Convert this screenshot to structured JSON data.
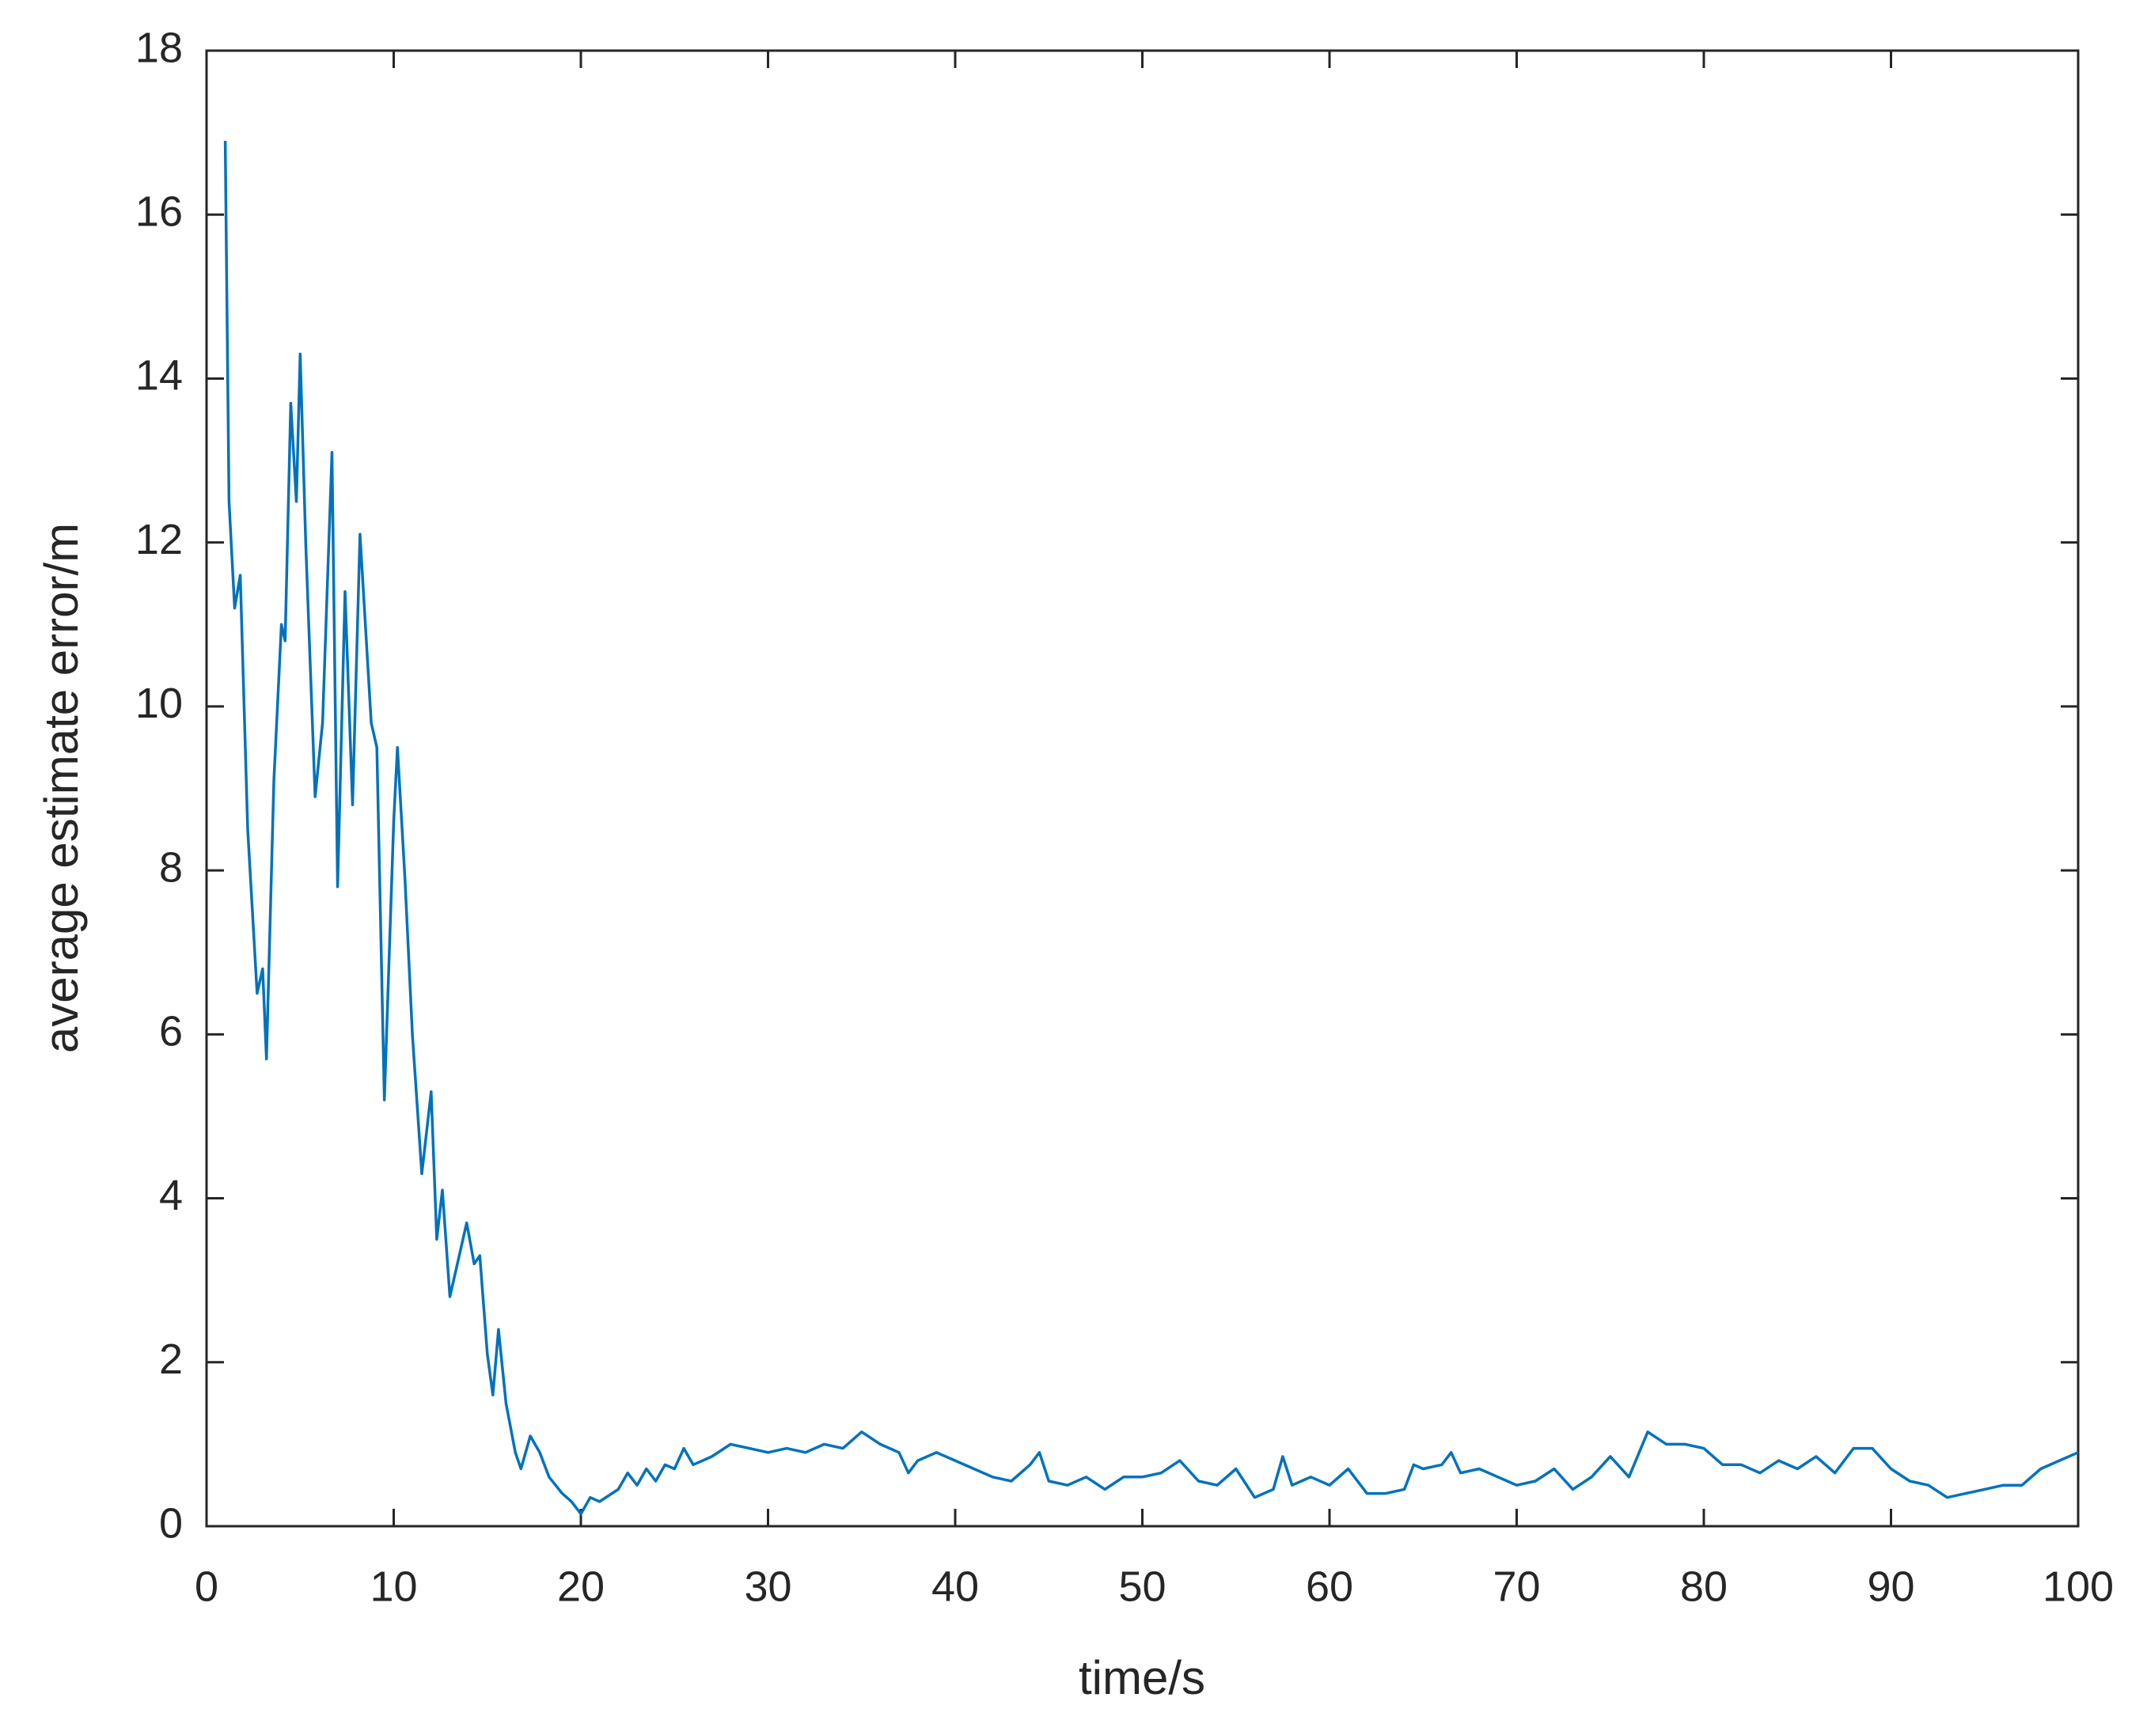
{
  "chart_data": {
    "type": "line",
    "x_label": "time/s",
    "y_label": "average estimate error/m",
    "xlim": [
      0,
      100
    ],
    "ylim": [
      0,
      18
    ],
    "xticks": [
      0,
      10,
      20,
      30,
      40,
      50,
      60,
      70,
      80,
      90,
      100
    ],
    "yticks": [
      0,
      2,
      4,
      6,
      8,
      10,
      12,
      14,
      16,
      18
    ],
    "grid": false,
    "x": [
      1,
      1.2,
      1.5,
      1.8,
      2.2,
      2.7,
      3.0,
      3.2,
      3.6,
      4.0,
      4.2,
      4.5,
      4.8,
      5.0,
      5.3,
      5.8,
      6.2,
      6.7,
      7.0,
      7.4,
      7.8,
      8.2,
      8.8,
      9.1,
      9.5,
      10.0,
      10.2,
      10.6,
      11.0,
      11.5,
      12.0,
      12.3,
      12.6,
      13.0,
      13.5,
      13.9,
      14.3,
      14.6,
      15.0,
      15.3,
      15.6,
      16.0,
      16.5,
      16.8,
      17.3,
      17.8,
      18.3,
      19.0,
      19.5,
      20.0,
      20.5,
      21.0,
      22.0,
      22.5,
      23.0,
      23.5,
      24,
      24.5,
      25,
      25.5,
      26,
      27,
      28,
      29,
      30,
      31,
      32,
      33,
      34,
      35,
      36,
      37,
      37.5,
      38,
      39,
      40,
      41,
      42,
      43,
      44,
      44.5,
      45,
      46,
      47,
      48,
      49,
      50,
      51,
      52,
      53,
      54,
      55,
      56,
      57,
      57.5,
      58,
      59,
      60,
      61,
      62,
      63,
      64,
      64.5,
      65,
      66,
      66.5,
      67,
      68,
      69,
      70,
      71,
      72,
      73,
      74,
      75,
      76,
      77,
      78,
      79,
      80,
      81,
      82,
      83,
      84,
      85,
      86,
      87,
      88,
      89,
      90,
      91,
      92,
      93,
      94,
      95,
      96,
      97,
      98,
      99,
      100
    ],
    "series": [
      {
        "color": "#0072bd",
        "values": [
          16.9,
          12.5,
          11.2,
          11.6,
          8.5,
          6.5,
          6.8,
          5.7,
          9.1,
          11.0,
          10.8,
          13.7,
          12.5,
          14.3,
          12.0,
          8.9,
          9.8,
          13.1,
          7.8,
          11.4,
          8.8,
          12.1,
          9.8,
          9.5,
          5.2,
          8.6,
          9.5,
          7.9,
          6.0,
          4.3,
          5.3,
          3.5,
          4.1,
          2.8,
          3.3,
          3.7,
          3.2,
          3.3,
          2.1,
          1.6,
          2.4,
          1.5,
          0.9,
          0.7,
          1.1,
          0.9,
          0.6,
          0.4,
          0.3,
          0.15,
          0.35,
          0.3,
          0.45,
          0.65,
          0.5,
          0.7,
          0.55,
          0.75,
          0.7,
          0.95,
          0.75,
          0.85,
          1.0,
          0.95,
          0.9,
          0.95,
          0.9,
          1.0,
          0.95,
          1.15,
          1.0,
          0.9,
          0.65,
          0.8,
          0.9,
          0.8,
          0.7,
          0.6,
          0.55,
          0.75,
          0.9,
          0.55,
          0.5,
          0.6,
          0.45,
          0.6,
          0.6,
          0.65,
          0.8,
          0.55,
          0.5,
          0.7,
          0.35,
          0.45,
          0.85,
          0.5,
          0.6,
          0.5,
          0.7,
          0.4,
          0.4,
          0.45,
          0.75,
          0.7,
          0.75,
          0.9,
          0.65,
          0.7,
          0.6,
          0.5,
          0.55,
          0.7,
          0.45,
          0.6,
          0.85,
          0.6,
          1.15,
          1.0,
          1.0,
          0.95,
          0.75,
          0.75,
          0.65,
          0.8,
          0.7,
          0.85,
          0.65,
          0.95,
          0.95,
          0.7,
          0.55,
          0.5,
          0.35,
          0.4,
          0.45,
          0.5,
          0.5,
          0.7,
          0.8,
          0.9
        ]
      }
    ]
  }
}
